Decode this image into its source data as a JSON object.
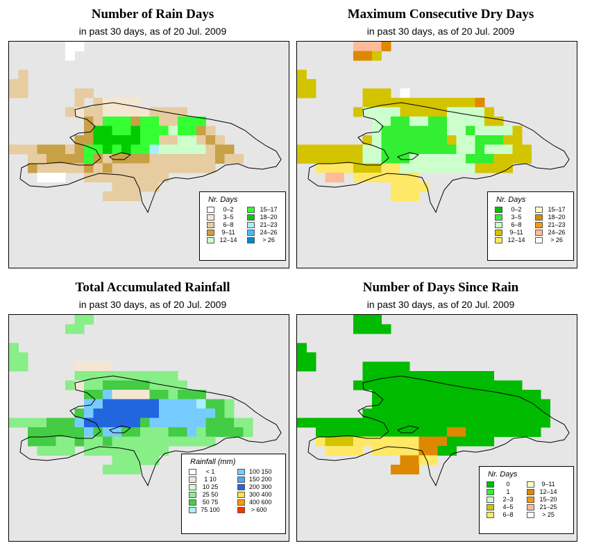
{
  "panels": [
    {
      "title": "Number of Rain Days",
      "subtitle": "in past 30 days, as of  20 Jul. 2009",
      "legend_title": "Nr. Days",
      "legend": [
        {
          "label": "0–2",
          "color": "#ffffff"
        },
        {
          "label": "3–5",
          "color": "#f5e6d2"
        },
        {
          "label": "6–8",
          "color": "#e6cca0"
        },
        {
          "label": "9–11",
          "color": "#c8a046"
        },
        {
          "label": "12–14",
          "color": "#ccffcc"
        },
        {
          "label": "15–17",
          "color": "#33ff33"
        },
        {
          "label": "18–20",
          "color": "#00cc00"
        },
        {
          "label": "21–23",
          "color": "#aaeeff"
        },
        {
          "label": "24–26",
          "color": "#44bbff"
        },
        {
          "label": "> 26",
          "color": "#0088cc"
        }
      ],
      "grid": {
        "rows": [
          "......ww......................",
          "......w.......................",
          "..............................",
          ".k.............................",
          "kk............................",
          "kk.....kk......................",
          ".......k.kbbbb................",
          "......kbkkbbbbbkkkk...........",
          "........dkgggdggkkggg.........",
          "........dmmggmgggaggdk........",
          ".......ddmmmmmggkkaakdk.......",
          "kkkdddkdggmgmggcaaaaakdd......",
          "..kkddddgdkddddkkkkkkkdkk.....",
          "..dkkkkkdkdkkkkkkkkkkk........",
          "...www..kkkkkkkkk.............",
          "...........kkkkk..............",
          "..........kkkk................",
          "..............................",
          "..............................",
          ".............................."
        ],
        "colors": {
          "w": "#ffffff",
          "k": "#e6cca0",
          "d": "#c8a046",
          "b": "#f5e6d2",
          "a": "#ccffcc",
          "g": "#33ff33",
          "m": "#00cc00",
          "c": "#aaeeff"
        }
      }
    },
    {
      "title": "Maximum Consecutive Dry Days",
      "subtitle": "in past 30 days, as of  20 Jul. 2009",
      "legend_title": "Nr. Days",
      "legend": [
        {
          "label": "0–2",
          "color": "#00bb00"
        },
        {
          "label": "3–5",
          "color": "#33ee33"
        },
        {
          "label": "6–8",
          "color": "#ccffcc"
        },
        {
          "label": "9–11",
          "color": "#d4c400"
        },
        {
          "label": "12–14",
          "color": "#ffe866"
        },
        {
          "label": "15–17",
          "color": "#ffffcc"
        },
        {
          "label": "18–20",
          "color": "#dd8800"
        },
        {
          "label": "21–23",
          "color": "#ff9900"
        },
        {
          "label": "24–26",
          "color": "#ffbb99"
        },
        {
          "label": "> 26",
          "color": "#ffffff"
        }
      ],
      "grid": {
        "rows": [
          "......rrro....................",
          "......ooy.....................",
          "..............................",
          "y.............................",
          "yy............................",
          "yy.....yyy.w...................",
          ".......yyyyyyyyyyyyo...........",
          "......yaaaayyyyyaaaay..........",
          "........aaggaaggaaaayy.........",
          "........agggggggaagaaaay.......",
          ".......yagggggggyaagggyy.......",
          "yyyyyyyaaggggggggaagaaayy......",
          "yyyyyyyaagggaaaaaagggyyyy.....",
          "..hhhhyyyhhaaaaaaaayyyy.......",
          "...rr.hhhhhhh.................",
          "..........hhhh................",
          "..........hhh.................",
          "..............................",
          "..............................",
          ".............................."
        ],
        "colors": {
          "y": "#d4c400",
          "h": "#ffe866",
          "a": "#ccffcc",
          "g": "#33ee33",
          "o": "#dd8800",
          "r": "#ffbb99",
          "w": "#ffffff"
        }
      }
    },
    {
      "title": "Total Accumulated Rainfall",
      "subtitle": "in past 30 days, as of  20 Jul. 2009",
      "legend_title": "Rainfall (mm)",
      "legend": [
        {
          "label": "< 1",
          "color": "#ffffff"
        },
        {
          "label": "1   10",
          "color": "#f5e6d2"
        },
        {
          "label": "10   25",
          "color": "#ccffcc"
        },
        {
          "label": "25   50",
          "color": "#88ee88"
        },
        {
          "label": "50   75",
          "color": "#44cc44"
        },
        {
          "label": "75  100",
          "color": "#aaeeff"
        },
        {
          "label": "100  150",
          "color": "#77ccff"
        },
        {
          "label": "150  200",
          "color": "#44aaff"
        },
        {
          "label": "200  300",
          "color": "#2266dd"
        },
        {
          "label": "300  400",
          "color": "#ffdd55"
        },
        {
          "label": "400  600",
          "color": "#ff9900"
        },
        {
          "label": "> 600",
          "color": "#ff3300"
        }
      ],
      "grid": {
        "rows": [
          ".......kk.....................",
          "......kk......................",
          "..............................",
          "k.............................",
          "kk............................",
          "kk.....bbbb...................",
          ".......kkkkkkkkkkk.............",
          "......kbkkgggggkkkk...........",
          "........ggsbbbbggkggg.........",
          "........ssddddddssssaggk......",
          ".......gsdddddddssssssgk.......",
          "kkkkgggsddddddgssssssgggkk.....",
          "..ggggggsgssggkkkggskggggk.....",
          "..gggkkgkkgkkkkkkkkkkk........",
          "...kkkk.kkkkkkkkk.............",
          "...........kkkkk..............",
          "..........kkkk................",
          "..............................",
          "..............................",
          ".............................."
        ],
        "colors": {
          "k": "#88ee88",
          "g": "#44cc44",
          "b": "#f5e6d2",
          "s": "#77ccff",
          "d": "#2266dd",
          "a": "#aaeeff"
        }
      }
    },
    {
      "title": "Number of Days Since Rain",
      "subtitle": "in past 30 days, as of  20 Jul. 2009",
      "legend_title": "Nr. Days",
      "legend": [
        {
          "label": "0",
          "color": "#00bb00"
        },
        {
          "label": "1",
          "color": "#33ee33"
        },
        {
          "label": "2–3",
          "color": "#ccffcc"
        },
        {
          "label": "4–5",
          "color": "#d4c400"
        },
        {
          "label": "6–8",
          "color": "#ffe866"
        },
        {
          "label": "9–11",
          "color": "#ffffcc"
        },
        {
          "label": "12–14",
          "color": "#dd8800"
        },
        {
          "label": "15–20",
          "color": "#ff9900"
        },
        {
          "label": "21–25",
          "color": "#ffbb99"
        },
        {
          "label": "> 25",
          "color": "#ffffff"
        }
      ],
      "grid": {
        "rows": [
          "......ggg.....................",
          "......gggg....................",
          "..............................",
          "g.............................",
          "gg............................",
          "gg.....ggggg...................",
          ".......gggggggggggggg..........",
          "......gggggggggggggggggg.......",
          "........gggggggggggggggggg.....",
          "........ggggggggggggggggggg....",
          ".......gggggggggggggggggggg....",
          "ggggggggggggggggggggggggggg....",
          "..ggggggggggggggoogggggggg.....",
          "..hyyyhhhhhhhoooggggg.........",
          "...hhhh.hhhhhoogg.............",
          "...........oohh...............",
          "..........ooo.................",
          "..............................",
          "..............................",
          ".............................."
        ],
        "colors": {
          "g": "#00bb00",
          "h": "#ffe866",
          "y": "#d4c400",
          "o": "#dd8800"
        }
      }
    }
  ]
}
